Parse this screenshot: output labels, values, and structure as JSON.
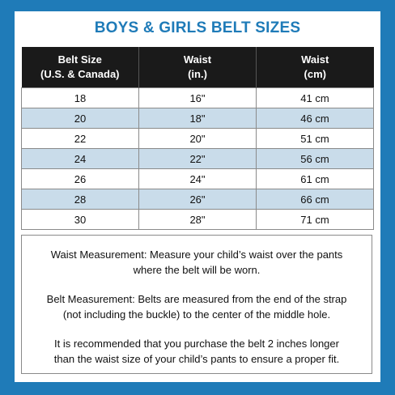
{
  "title": "BOYS & GIRLS BELT SIZES",
  "table": {
    "headers": [
      [
        "Belt Size",
        "(U.S. & Canada)"
      ],
      [
        "Waist",
        "(in.)"
      ],
      [
        "Waist",
        "(cm)"
      ]
    ],
    "rows": [
      [
        "18",
        "16\"",
        "41 cm"
      ],
      [
        "20",
        "18\"",
        "46 cm"
      ],
      [
        "22",
        "20\"",
        "51 cm"
      ],
      [
        "24",
        "22\"",
        "56 cm"
      ],
      [
        "26",
        "24\"",
        "61 cm"
      ],
      [
        "28",
        "26\"",
        "66 cm"
      ],
      [
        "30",
        "28\"",
        "71 cm"
      ]
    ]
  },
  "notes": {
    "waist": [
      "Waist Measurement:  Measure your child’s waist over the pants",
      "where the belt will be worn."
    ],
    "belt": [
      "Belt Measurement:  Belts are measured from the end of the strap",
      "(not including the buckle) to the center of the middle hole."
    ],
    "recommend": [
      "It is recommended that you purchase the belt 2 inches longer",
      "than the waist size of your child’s pants to ensure a proper fit."
    ]
  },
  "colors": {
    "background": "#1f7bb8",
    "header_bg": "#1a1a1a",
    "row_shade": "#c9dcea",
    "title": "#1f7bb8"
  }
}
